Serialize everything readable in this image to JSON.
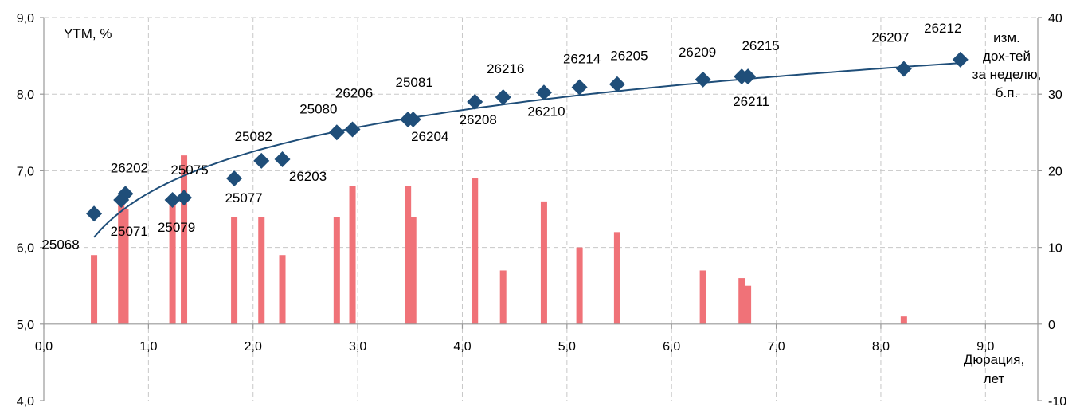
{
  "chart_data": {
    "type": "scatter",
    "title": "",
    "ylabel": "YTM, %",
    "y2label_lines": [
      "изм.",
      "дох-тей",
      "за неделю,",
      "б.п."
    ],
    "xlabel_lines": [
      "Дюрация,",
      "лет"
    ],
    "xlim": [
      0,
      9.5
    ],
    "ylim": [
      4,
      9
    ],
    "y2lim": [
      -10,
      40
    ],
    "x_ticks": [
      "0,0",
      "1,0",
      "2,0",
      "3,0",
      "4,0",
      "5,0",
      "6,0",
      "7,0",
      "8,0",
      "9,0"
    ],
    "y_ticks": [
      "4,0",
      "5,0",
      "6,0",
      "7,0",
      "8,0",
      "9,0"
    ],
    "y2_ticks": [
      "-10",
      "0",
      "10",
      "20",
      "30",
      "40"
    ],
    "grid": true,
    "colors": {
      "points": "#1f4e79",
      "curve": "#1f4e79",
      "bars": "#f07278"
    },
    "points": [
      {
        "name": "25068",
        "x": 0.48,
        "y": 6.44
      },
      {
        "name": "25071",
        "x": 0.74,
        "y": 6.62
      },
      {
        "name": "26202",
        "x": 0.78,
        "y": 6.7
      },
      {
        "name": "25079",
        "x": 1.23,
        "y": 6.62
      },
      {
        "name": "25075",
        "x": 1.34,
        "y": 6.65
      },
      {
        "name": "25077",
        "x": 1.82,
        "y": 6.9
      },
      {
        "name": "25082",
        "x": 2.08,
        "y": 7.13
      },
      {
        "name": "26203",
        "x": 2.28,
        "y": 7.15
      },
      {
        "name": "25080",
        "x": 2.8,
        "y": 7.5
      },
      {
        "name": "26206",
        "x": 2.95,
        "y": 7.54
      },
      {
        "name": "25081",
        "x": 3.48,
        "y": 7.67
      },
      {
        "name": "26204",
        "x": 3.53,
        "y": 7.67
      },
      {
        "name": "26208",
        "x": 4.12,
        "y": 7.9
      },
      {
        "name": "26216",
        "x": 4.39,
        "y": 7.96
      },
      {
        "name": "26210",
        "x": 4.78,
        "y": 8.02
      },
      {
        "name": "26214",
        "x": 5.12,
        "y": 8.09
      },
      {
        "name": "26205",
        "x": 5.48,
        "y": 8.13
      },
      {
        "name": "26209",
        "x": 6.3,
        "y": 8.19
      },
      {
        "name": "26211",
        "x": 6.67,
        "y": 8.23
      },
      {
        "name": "26215",
        "x": 6.73,
        "y": 8.23
      },
      {
        "name": "26207",
        "x": 8.22,
        "y": 8.33
      },
      {
        "name": "26212",
        "x": 8.76,
        "y": 8.45
      }
    ],
    "bars": [
      {
        "x": 0.48,
        "value": 9
      },
      {
        "x": 0.74,
        "value": 16
      },
      {
        "x": 0.78,
        "value": 15
      },
      {
        "x": 1.23,
        "value": 16
      },
      {
        "x": 1.34,
        "value": 22
      },
      {
        "x": 1.82,
        "value": 14
      },
      {
        "x": 2.08,
        "value": 14
      },
      {
        "x": 2.28,
        "value": 9
      },
      {
        "x": 2.8,
        "value": 14
      },
      {
        "x": 2.95,
        "value": 18
      },
      {
        "x": 3.48,
        "value": 18
      },
      {
        "x": 3.53,
        "value": 14
      },
      {
        "x": 4.12,
        "value": 19
      },
      {
        "x": 4.39,
        "value": 7
      },
      {
        "x": 4.78,
        "value": 16
      },
      {
        "x": 5.12,
        "value": 10
      },
      {
        "x": 5.48,
        "value": 12
      },
      {
        "x": 6.3,
        "value": 7
      },
      {
        "x": 6.67,
        "value": 6
      },
      {
        "x": 6.73,
        "value": 5
      },
      {
        "x": 8.22,
        "value": 1
      }
    ]
  }
}
